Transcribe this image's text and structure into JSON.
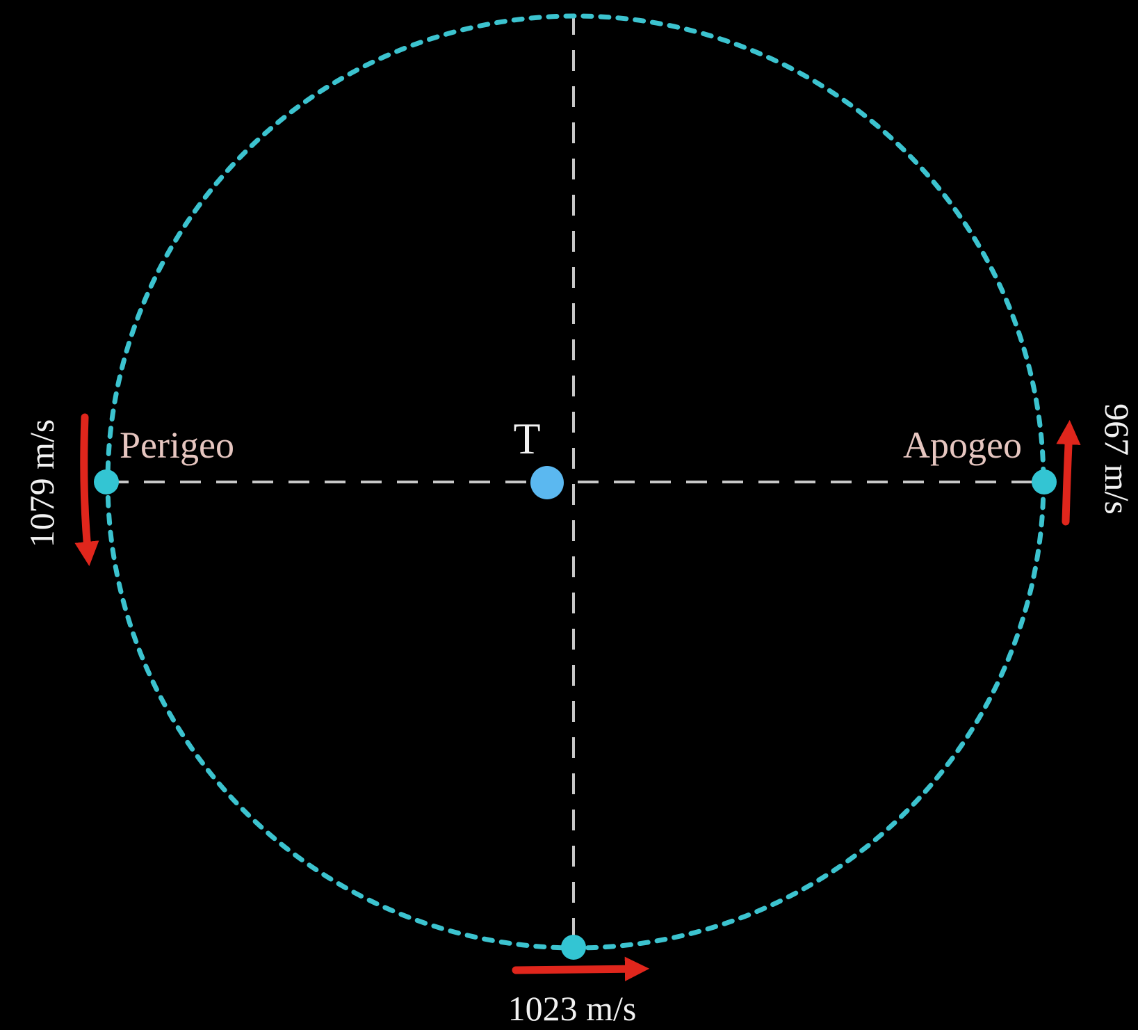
{
  "diagram": {
    "center_label": "T",
    "perigee_label": "Perigeo",
    "apogee_label": "Apogeo",
    "perigee_speed": "1079 m/s",
    "apogee_speed": "967 m/s",
    "minor_axis_speed": "1023 m/s"
  },
  "colors": {
    "background": "#000000",
    "orbit": "#3cc3cf",
    "orbit_point": "#33c5d3",
    "axes": "#c8c8c8",
    "earth": "#5bb8f0",
    "arrow": "#e0261c",
    "point_label": "#e6c6c0",
    "speed_label": "#f2f2f2"
  }
}
